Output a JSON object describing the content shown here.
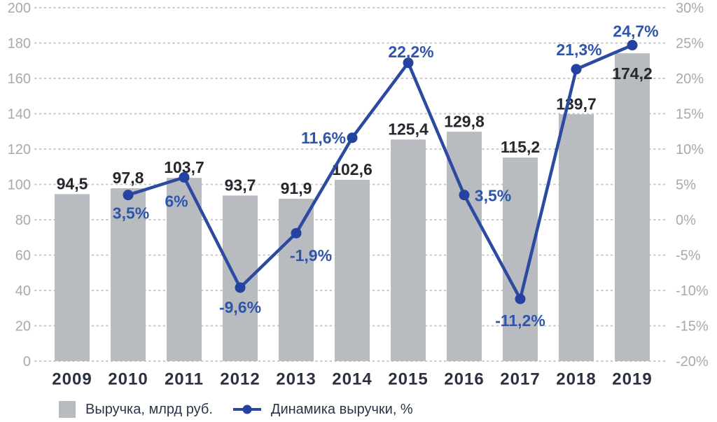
{
  "chart_data": {
    "type": "bar",
    "combo": "bar+line",
    "categories": [
      "2009",
      "2010",
      "2011",
      "2012",
      "2013",
      "2014",
      "2015",
      "2016",
      "2017",
      "2018",
      "2019"
    ],
    "series": [
      {
        "name": "Выручка, млрд руб.",
        "type": "bar",
        "axis": "left",
        "values": [
          94.5,
          97.8,
          103.7,
          93.7,
          91.9,
          102.6,
          125.4,
          129.8,
          115.2,
          139.7,
          174.2
        ],
        "labels": [
          "94,5",
          "97,8",
          "103,7",
          "93,7",
          "91,9",
          "102,6",
          "125,4",
          "129,8",
          "115,2",
          "139,7",
          "174,2"
        ]
      },
      {
        "name": "Динамика выручки, %",
        "type": "line",
        "axis": "right",
        "values": [
          null,
          3.5,
          6,
          -9.6,
          -1.9,
          11.6,
          22.2,
          3.5,
          -11.2,
          21.3,
          24.7
        ],
        "labels": [
          null,
          "3,5%",
          "6%",
          "-9,6%",
          "-1,9%",
          "11,6%",
          "22,2%",
          "3,5%",
          "-11,2%",
          "21,3%",
          "24,7%"
        ]
      }
    ],
    "left_axis": {
      "min": 0,
      "max": 200,
      "step": 20,
      "ticks": [
        "200",
        "180",
        "160",
        "140",
        "120",
        "100",
        "80",
        "60",
        "40",
        "20",
        "0"
      ]
    },
    "right_axis": {
      "min": -20,
      "max": 30,
      "step": 5,
      "ticks": [
        "30%",
        "25%",
        "20%",
        "15%",
        "10%",
        "5%",
        "0%",
        "-5%",
        "-10%",
        "-15%",
        "-20%"
      ]
    },
    "grid": "dotted horizontal gridlines",
    "legend": {
      "position": "bottom-left",
      "bar_label": "Выручка, млрд руб.",
      "line_label": "Динамика выручки, %"
    },
    "colors": {
      "bar": "#b8bbc0",
      "line": "#2b4aa0",
      "point": "#2443a0",
      "point_label": "#2f55ab",
      "bar_label": "#27282d",
      "year_label": "#2a3142",
      "tick_label": "#a7a9ae",
      "grid": "#c6c7cb",
      "legend_text": "#2b3447",
      "background": "#ffffff"
    }
  }
}
